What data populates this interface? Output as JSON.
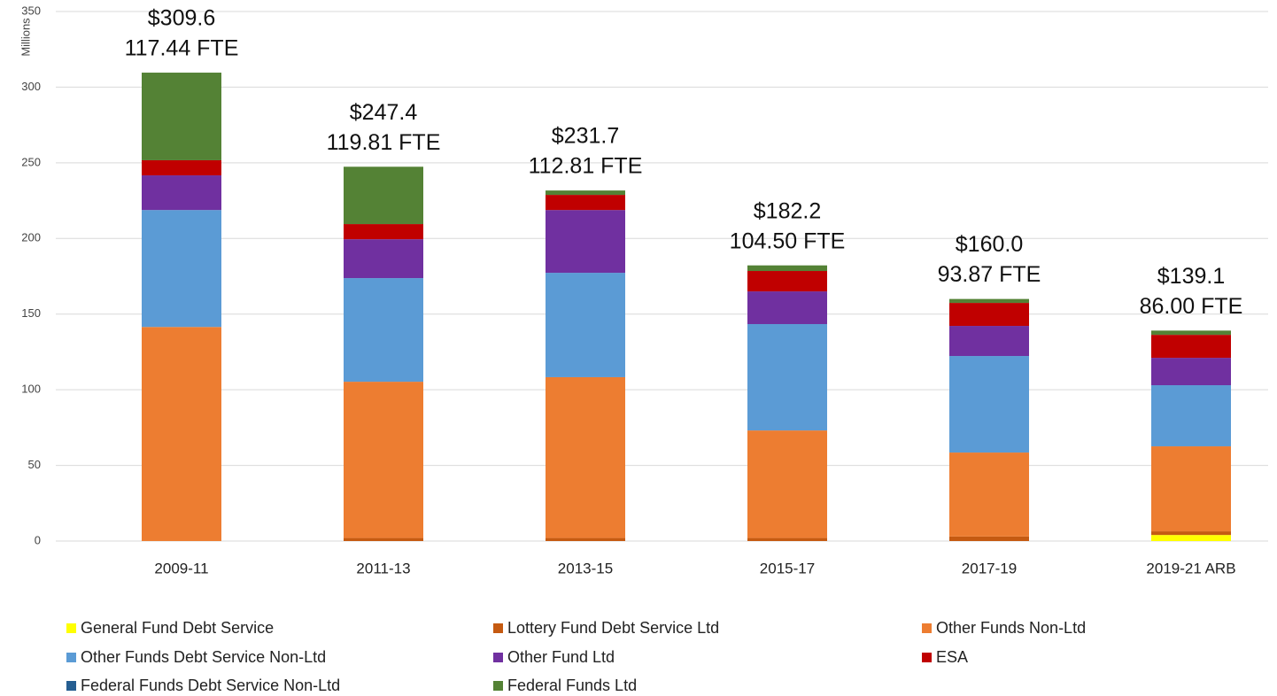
{
  "chart_data": {
    "type": "stacked_bar",
    "y_label": "Millions",
    "categories": [
      "2009-11",
      "2011-13",
      "2013-15",
      "2015-17",
      "2017-19",
      "2019-21 ARB"
    ],
    "series": [
      {
        "name": "General Fund Debt Service",
        "color": "#ffff00",
        "values": [
          0,
          0,
          0,
          0,
          0,
          4
        ]
      },
      {
        "name": "Lottery Fund Debt Service Ltd",
        "color": "#c55a11",
        "values": [
          0,
          2,
          2,
          2,
          3,
          2.4
        ]
      },
      {
        "name": "Other Funds Non-Ltd",
        "color": "#ed7d31",
        "values": [
          141.5,
          103.3,
          106.3,
          71.1,
          55.5,
          56.2
        ]
      },
      {
        "name": "Other Funds Debt Service Non-Ltd",
        "color": "#5b9bd5",
        "values": [
          77.3,
          68.5,
          69,
          70.3,
          63.8,
          40.4
        ]
      },
      {
        "name": "Other Fund Ltd",
        "color": "#7030a0",
        "values": [
          22.9,
          25.7,
          41.5,
          21.6,
          19.9,
          18.1
        ]
      },
      {
        "name": "ESA",
        "color": "#c00000",
        "values": [
          10,
          10,
          10,
          13.5,
          15.2,
          15.2
        ]
      },
      {
        "name": "Federal Funds Debt Service Non-Ltd",
        "color": "#255e91",
        "values": [
          0,
          0,
          0,
          0,
          0,
          0
        ]
      },
      {
        "name": "Federal Funds Ltd",
        "color": "#548235",
        "values": [
          57.9,
          37.9,
          2.9,
          3.7,
          2.6,
          2.8
        ]
      }
    ],
    "annotations": [
      {
        "total": "$309.6",
        "fte": "117.44 FTE"
      },
      {
        "total": "$247.4",
        "fte": "119.81 FTE"
      },
      {
        "total": "$231.7",
        "fte": "112.81 FTE"
      },
      {
        "total": "$182.2",
        "fte": "104.50 FTE"
      },
      {
        "total": "$160.0",
        "fte": "93.87 FTE"
      },
      {
        "total": "$139.1",
        "fte": "86.00 FTE"
      }
    ],
    "ylim": [
      0,
      350
    ],
    "yticks": [
      0,
      50,
      100,
      150,
      200,
      250,
      300,
      350
    ],
    "grid": true,
    "legend": "bottom"
  }
}
